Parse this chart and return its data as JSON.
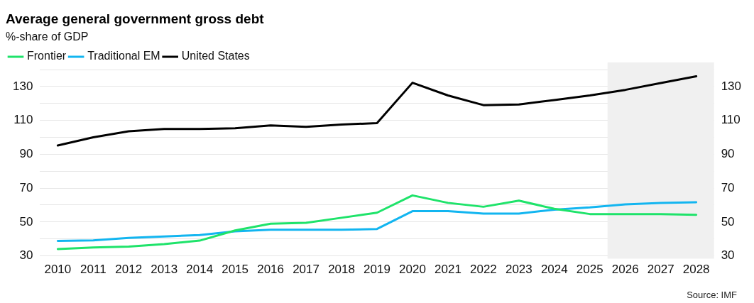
{
  "chart_data": {
    "type": "line",
    "title": "Average general government gross debt",
    "subtitle": "%-share of GDP",
    "x": [
      2010,
      2011,
      2012,
      2013,
      2014,
      2015,
      2016,
      2017,
      2018,
      2019,
      2020,
      2021,
      2022,
      2023,
      2024,
      2025,
      2026,
      2027,
      2028
    ],
    "series": [
      {
        "name": "Frontier",
        "color": "#1ee36a",
        "values": [
          34,
          35,
          35.5,
          37,
          39,
          45,
          49,
          49.5,
          52.5,
          55.5,
          65.7,
          61.3,
          59,
          62.6,
          57.8,
          54.7,
          54.7,
          54.7,
          54.2
        ]
      },
      {
        "name": "Traditional EM",
        "color": "#12b5f0",
        "values": [
          38.8,
          39.2,
          40.6,
          41.5,
          42.3,
          44.5,
          45.4,
          45.4,
          45.4,
          45.9,
          56.4,
          56.4,
          55,
          55,
          57.3,
          58.6,
          60.4,
          61.3,
          61.7
        ]
      },
      {
        "name": "United States",
        "color": "#000000",
        "values": [
          95.2,
          100,
          103.6,
          104.9,
          104.9,
          105.3,
          107,
          106.2,
          107.5,
          108.4,
          132.2,
          124.7,
          119,
          119.4,
          122,
          124.7,
          128,
          132,
          136
        ]
      }
    ],
    "xlim": [
      2009.5,
      2028.5
    ],
    "xticks": [
      2010,
      2011,
      2012,
      2013,
      2014,
      2015,
      2016,
      2017,
      2018,
      2019,
      2020,
      2021,
      2022,
      2023,
      2024,
      2025,
      2026,
      2027,
      2028
    ],
    "ylim": [
      30,
      140
    ],
    "yticks": [
      30,
      {
        "value": 40,
        "label": null
      },
      50,
      {
        "value": 60,
        "label": null
      },
      70,
      {
        "value": 80,
        "label": null
      },
      90,
      {
        "value": 100,
        "label": null
      },
      110,
      {
        "value": 120,
        "label": null
      },
      130,
      {
        "value": 140,
        "label": null
      }
    ],
    "y2lim": [
      30,
      140
    ],
    "y2ticks": [
      30,
      50,
      70,
      90,
      110,
      130
    ],
    "bands": [
      {
        "axis": "x",
        "from": 2025.5,
        "to": 2028.5,
        "color": "#f0f0f0"
      }
    ],
    "grid": "y",
    "legend": "top left",
    "marker": "none",
    "line_style": "solid",
    "annotations": [
      "Source: IMF"
    ]
  }
}
